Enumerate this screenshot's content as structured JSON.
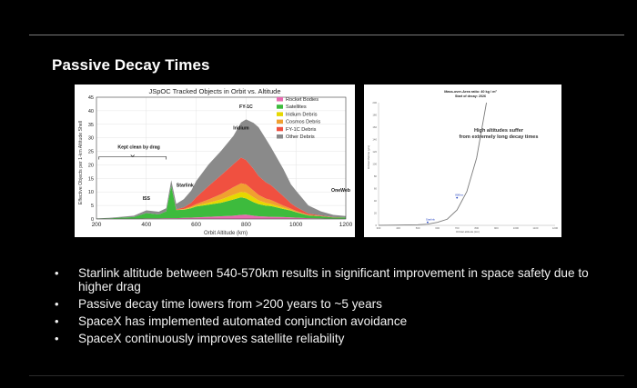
{
  "slide": {
    "title": "Passive Decay Times",
    "bullets": [
      "Starlink altitude between 540-570km results in significant improvement in space safety due to higher drag",
      "Passive decay time lowers from >200 years to ~5 years",
      "SpaceX has implemented automated conjunction avoidance",
      "SpaceX continuously improves satellite reliability"
    ],
    "bullet_symbol": "•"
  },
  "chart_data": [
    {
      "type": "area",
      "title": "JSpOC Tracked Objects in Orbit vs. Altitude",
      "xlabel": "Orbit Altitude (km)",
      "ylabel": "Effective Objects per 1-km Altitude Shell",
      "xlim": [
        200,
        1200
      ],
      "ylim": [
        0,
        45
      ],
      "xticks": [
        200,
        400,
        600,
        800,
        1000,
        1200
      ],
      "yticks": [
        0,
        5,
        10,
        15,
        20,
        25,
        30,
        35,
        40,
        45
      ],
      "grid": true,
      "legend_position": "top-right",
      "x": [
        200,
        250,
        300,
        350,
        400,
        450,
        480,
        500,
        520,
        550,
        580,
        600,
        650,
        700,
        750,
        780,
        800,
        830,
        850,
        880,
        900,
        950,
        980,
        1000,
        1050,
        1100,
        1150,
        1200
      ],
      "series": [
        {
          "name": "Rocket Bodies",
          "color": "#e86ab0",
          "values": [
            0,
            0,
            0.1,
            0.1,
            0.2,
            0.2,
            0.3,
            0.3,
            0.3,
            0.4,
            0.5,
            0.6,
            0.8,
            1,
            1.2,
            1.5,
            1.6,
            1.2,
            1,
            0.9,
            0.8,
            0.7,
            0.6,
            0.5,
            0.3,
            0.2,
            0.1,
            0.1
          ]
        },
        {
          "name": "Satellites",
          "color": "#3dbb3d",
          "values": [
            0.1,
            0.2,
            0.4,
            0.6,
            2,
            1.5,
            2.5,
            12,
            3,
            3,
            3.5,
            4,
            4.5,
            5,
            6,
            6.5,
            6,
            5,
            4.5,
            4,
            4,
            3,
            2.5,
            2,
            1,
            0.8,
            0.5,
            0.5
          ]
        },
        {
          "name": "Iridium Debris",
          "color": "#e6d800",
          "values": [
            0,
            0,
            0,
            0,
            0,
            0,
            0,
            0,
            0,
            0.1,
            0.2,
            0.3,
            0.7,
            1.2,
            1.8,
            2,
            2.2,
            1.8,
            1.4,
            1,
            0.8,
            0.4,
            0.2,
            0.1,
            0,
            0,
            0,
            0
          ]
        },
        {
          "name": "Cosmos Debris",
          "color": "#f0a030",
          "values": [
            0,
            0,
            0,
            0,
            0,
            0,
            0,
            0,
            0.1,
            0.2,
            0.4,
            0.6,
            1.2,
            2,
            2.8,
            3.2,
            3,
            2.5,
            2,
            1.6,
            1.4,
            0.8,
            0.5,
            0.4,
            0.2,
            0.1,
            0,
            0
          ]
        },
        {
          "name": "FY-1C Debris",
          "color": "#f05040",
          "values": [
            0,
            0,
            0,
            0,
            0,
            0,
            0,
            0,
            0.2,
            0.6,
            1.4,
            2.5,
            5,
            7,
            8.5,
            9.5,
            9,
            8,
            7,
            6,
            5.5,
            3.5,
            2,
            1.5,
            0.5,
            0.2,
            0.1,
            0
          ]
        },
        {
          "name": "Other Debris",
          "color": "#8a8a8a",
          "values": [
            0.1,
            0.2,
            0.3,
            0.5,
            1,
            1,
            1.2,
            2,
            2,
            3,
            4.5,
            6,
            8,
            9,
            10.5,
            13,
            15,
            17,
            18,
            16,
            14,
            10,
            7,
            6,
            3,
            1.5,
            0.8,
            0.5
          ]
        }
      ],
      "annotations": [
        {
          "text": "Kept clean by drag",
          "x": 370,
          "y": 26
        },
        {
          "text": "ISS",
          "x": 400,
          "y": 7
        },
        {
          "text": "Starlink",
          "x": 555,
          "y": 12
        },
        {
          "text": "Iridium",
          "x": 780,
          "y": 33
        },
        {
          "text": "FY-1C",
          "x": 800,
          "y": 41
        },
        {
          "text": "OneWeb",
          "x": 1180,
          "y": 10
        }
      ]
    },
    {
      "type": "line",
      "title": "Mass-over-Area ratio: 40 kg / m²",
      "subtitle": "Start of decay: 2026",
      "xlabel": "Orbital altitude (km)",
      "ylabel": "Orbital lifetime (yrs)",
      "xlim": [
        300,
        1200
      ],
      "ylim": [
        0,
        200
      ],
      "annotation": "High altitudes suffer from extremely long decay times",
      "series": [
        {
          "name": "",
          "x": [
            300,
            400,
            500,
            550,
            600,
            650,
            700,
            750,
            800,
            850
          ],
          "values": [
            0.1,
            0.5,
            1,
            2,
            5,
            10,
            25,
            55,
            110,
            200
          ]
        }
      ],
      "points": [
        {
          "label": "Starlink",
          "x": 550,
          "y": 5
        },
        {
          "label": "800km",
          "x": 700,
          "y": 45
        }
      ]
    }
  ]
}
